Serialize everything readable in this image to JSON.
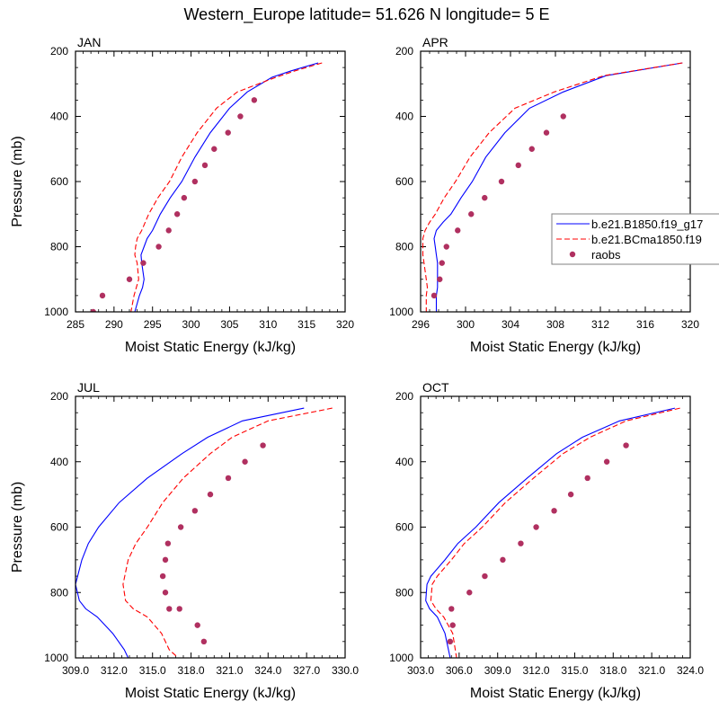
{
  "figure": {
    "title": "Western_Europe  latitude= 51.626 N longitude= 5 E"
  },
  "legend": {
    "entries": [
      {
        "label": "b.e21.B1850.f19_g17",
        "color": "#0000ff",
        "style": "solid"
      },
      {
        "label": "b.e21.BCma1850.f19",
        "color": "#ff0000",
        "style": "dashed"
      },
      {
        "label": "raobs",
        "color": "#b03060",
        "style": "dot"
      }
    ]
  },
  "chart_data": [
    {
      "type": "line",
      "panel_label": "JAN",
      "xlabel": "Moist Static Energy (kJ/kg)",
      "ylabel": "Pressure (mb)",
      "xlim": [
        285,
        320
      ],
      "xticks": [
        "285",
        "290",
        "295",
        "300",
        "305",
        "310",
        "315",
        "320"
      ],
      "ylim": [
        200,
        1000
      ],
      "yticks": [
        "200",
        "400",
        "600",
        "800",
        "1000"
      ],
      "series": [
        {
          "name": "b.e21.B1850.f19_g17",
          "color": "#0000ff",
          "dash": false,
          "x": [
            316.5,
            313.0,
            310.5,
            307.3,
            305.0,
            302.5,
            300.5,
            298.8,
            297.3,
            296.0,
            295.0,
            294.3,
            293.9,
            293.5,
            293.6,
            293.9,
            293.7,
            293.3,
            292.7
          ],
          "y": [
            236,
            260,
            280,
            325,
            375,
            450,
            525,
            600,
            650,
            700,
            750,
            775,
            800,
            825,
            850,
            900,
            925,
            950,
            1000
          ]
        },
        {
          "name": "b.e21.BCma1850.f19",
          "color": "#ff0000",
          "dash": true,
          "x": [
            317.0,
            313.5,
            311.0,
            306.0,
            303.3,
            300.8,
            298.8,
            297.2,
            295.7,
            294.5,
            293.6,
            293.0,
            292.8,
            292.7,
            293.0,
            293.2,
            292.9,
            292.6,
            292.2
          ],
          "y": [
            236,
            260,
            280,
            325,
            375,
            450,
            525,
            600,
            650,
            700,
            750,
            775,
            800,
            825,
            850,
            900,
            925,
            950,
            1000
          ]
        },
        {
          "name": "raobs",
          "color": "#b03060",
          "marker": "dot",
          "x": [
            308.2,
            306.4,
            304.8,
            303.0,
            301.8,
            300.5,
            299.1,
            298.2,
            297.1,
            295.8,
            293.8,
            292.0,
            288.5,
            287.3
          ],
          "y": [
            350,
            400,
            450,
            500,
            550,
            600,
            650,
            700,
            750,
            800,
            850,
            900,
            950,
            1000
          ]
        }
      ]
    },
    {
      "type": "line",
      "panel_label": "APR",
      "xlabel": "Moist Static Energy (kJ/kg)",
      "ylabel": "",
      "xlim": [
        296,
        320
      ],
      "xticks": [
        "296",
        "300",
        "304",
        "308",
        "312",
        "316",
        "320"
      ],
      "ylim": [
        200,
        1000
      ],
      "yticks": [
        "200",
        "400",
        "600",
        "800",
        "1000"
      ],
      "series": [
        {
          "name": "b.e21.B1850.f19_g17",
          "color": "#0000ff",
          "dash": false,
          "x": [
            319.3,
            312.5,
            308.7,
            305.7,
            303.5,
            301.8,
            300.6,
            299.6,
            298.7,
            298.0,
            297.4,
            297.2,
            297.3,
            297.4,
            297.5,
            297.5,
            297.5,
            297.4,
            297.4
          ],
          "y": [
            236,
            275,
            325,
            375,
            450,
            525,
            600,
            650,
            700,
            725,
            750,
            775,
            800,
            825,
            850,
            900,
            925,
            950,
            1000
          ]
        },
        {
          "name": "b.e21.BCma1850.f19",
          "color": "#ff0000",
          "dash": true,
          "x": [
            319.3,
            312.3,
            307.9,
            304.4,
            302.1,
            300.4,
            299.1,
            298.1,
            297.3,
            296.8,
            296.4,
            296.2,
            296.2,
            296.2,
            296.3,
            296.5,
            296.6,
            296.5,
            296.5
          ],
          "y": [
            236,
            275,
            325,
            375,
            450,
            525,
            600,
            650,
            700,
            725,
            750,
            775,
            800,
            825,
            850,
            900,
            925,
            950,
            1000
          ]
        },
        {
          "name": "raobs",
          "color": "#b03060",
          "marker": "dot",
          "x": [
            308.7,
            307.2,
            305.9,
            304.7,
            303.2,
            301.7,
            300.5,
            299.3,
            298.3,
            297.9,
            297.7,
            297.2
          ],
          "y": [
            400,
            450,
            500,
            550,
            600,
            650,
            700,
            750,
            800,
            850,
            900,
            950
          ]
        }
      ]
    },
    {
      "type": "line",
      "panel_label": "JUL",
      "xlabel": "Moist Static Energy (kJ/kg)",
      "ylabel": "Pressure (mb)",
      "xlim": [
        309,
        330
      ],
      "xticks": [
        "309.0",
        "312.0",
        "315.0",
        "318.0",
        "321.0",
        "324.0",
        "327.0",
        "330.0"
      ],
      "ylim": [
        200,
        1000
      ],
      "yticks": [
        "200",
        "400",
        "600",
        "800",
        "1000"
      ],
      "series": [
        {
          "name": "b.e21.B1850.f19_g17",
          "color": "#0000ff",
          "dash": false,
          "x": [
            326.8,
            322.0,
            319.3,
            317.3,
            314.6,
            312.4,
            310.8,
            310.0,
            309.5,
            309.0,
            309.3,
            309.8,
            310.7,
            311.9,
            312.8,
            313.1
          ],
          "y": [
            236,
            275,
            325,
            375,
            450,
            525,
            600,
            650,
            700,
            775,
            825,
            850,
            875,
            925,
            975,
            1000
          ]
        },
        {
          "name": "b.e21.BCma1850.f19",
          "color": "#ff0000",
          "dash": true,
          "x": [
            329.0,
            324.0,
            321.2,
            319.5,
            317.4,
            315.8,
            314.6,
            313.7,
            313.1,
            312.7,
            312.9,
            313.5,
            314.6,
            315.7,
            316.3,
            317.0
          ],
          "y": [
            236,
            275,
            325,
            375,
            450,
            525,
            600,
            650,
            700,
            775,
            825,
            850,
            875,
            925,
            975,
            1000
          ]
        },
        {
          "name": "raobs",
          "color": "#b03060",
          "marker": "dot",
          "x": [
            323.6,
            322.2,
            320.9,
            319.5,
            318.3,
            317.2,
            316.2,
            316.0,
            315.8,
            316.0,
            316.3,
            317.1,
            318.5,
            319.0
          ],
          "y": [
            350,
            400,
            450,
            500,
            550,
            600,
            650,
            700,
            750,
            800,
            850,
            850,
            900,
            950
          ]
        }
      ]
    },
    {
      "type": "line",
      "panel_label": "OCT",
      "xlabel": "Moist Static Energy (kJ/kg)",
      "ylabel": "",
      "xlim": [
        303,
        324
      ],
      "xticks": [
        "303.0",
        "306.0",
        "309.0",
        "312.0",
        "315.0",
        "318.0",
        "321.0",
        "324.0"
      ],
      "ylim": [
        200,
        1000
      ],
      "yticks": [
        "200",
        "400",
        "600",
        "800",
        "1000"
      ],
      "series": [
        {
          "name": "b.e21.B1850.f19_g17",
          "color": "#0000ff",
          "dash": false,
          "x": [
            322.8,
            318.5,
            315.6,
            313.6,
            311.3,
            309.1,
            307.3,
            305.9,
            304.9,
            303.8,
            303.5,
            303.4,
            303.7,
            304.3,
            304.9,
            305.3
          ],
          "y": [
            236,
            275,
            325,
            375,
            450,
            525,
            600,
            650,
            700,
            750,
            775,
            825,
            850,
            875,
            925,
            1000
          ]
        },
        {
          "name": "b.e21.BCma1850.f19",
          "color": "#ff0000",
          "dash": true,
          "x": [
            323.2,
            319.0,
            316.2,
            314.1,
            311.8,
            309.6,
            307.8,
            306.4,
            305.4,
            304.3,
            303.9,
            303.8,
            304.2,
            304.8,
            305.5,
            305.8
          ],
          "y": [
            236,
            275,
            325,
            375,
            450,
            525,
            600,
            650,
            700,
            750,
            775,
            825,
            850,
            875,
            925,
            1000
          ]
        },
        {
          "name": "raobs",
          "color": "#b03060",
          "marker": "dot",
          "x": [
            319.0,
            317.5,
            316.0,
            314.7,
            313.4,
            312.0,
            310.8,
            309.4,
            308.0,
            306.8,
            305.4,
            305.5,
            305.3
          ],
          "y": [
            350,
            400,
            450,
            500,
            550,
            600,
            650,
            700,
            750,
            800,
            850,
            900,
            950
          ]
        }
      ]
    }
  ]
}
